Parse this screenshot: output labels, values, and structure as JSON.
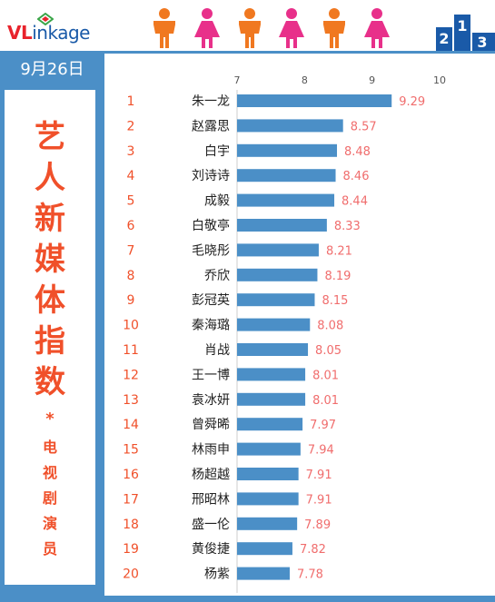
{
  "header": {
    "logo_prefix": "VL",
    "logo_rest": "inkage",
    "people_icons": [
      "male-icon",
      "female-icon",
      "male-icon",
      "female-icon",
      "male-icon",
      "female-icon"
    ],
    "people_colors": {
      "male": "#f07820",
      "female": "#e8308a"
    },
    "podium_icon": "podium-icon"
  },
  "date": "9月26日",
  "title": {
    "main": [
      "艺",
      "人",
      "新",
      "媒",
      "体",
      "指",
      "数"
    ],
    "star": "*",
    "sub": [
      "电",
      "视",
      "剧",
      "演",
      "员"
    ]
  },
  "colors": {
    "panel": "#4b8fc7",
    "accent": "#f0502a",
    "bar": "#4b8fc7",
    "value": "#f06d6d"
  },
  "chart_data": {
    "type": "bar",
    "orientation": "horizontal",
    "categories": [
      "朱一龙",
      "赵露思",
      "白宇",
      "刘诗诗",
      "成毅",
      "白敬亭",
      "毛晓彤",
      "乔欣",
      "彭冠英",
      "秦海璐",
      "肖战",
      "王一博",
      "袁冰妍",
      "曾舜晞",
      "林雨申",
      "杨超越",
      "邢昭林",
      "盛一伦",
      "黄俊捷",
      "杨紫"
    ],
    "ranks": [
      "1",
      "2",
      "3",
      "4",
      "5",
      "6",
      "7",
      "8",
      "9",
      "10",
      "11",
      "12",
      "13",
      "14",
      "15",
      "16",
      "17",
      "18",
      "19",
      "20"
    ],
    "values": [
      9.29,
      8.57,
      8.48,
      8.46,
      8.44,
      8.33,
      8.21,
      8.19,
      8.15,
      8.08,
      8.05,
      8.01,
      8.01,
      7.97,
      7.94,
      7.91,
      7.91,
      7.89,
      7.82,
      7.78
    ],
    "value_labels": [
      "9.29",
      "8.57",
      "8.48",
      "8.46",
      "8.44",
      "8.33",
      "8.21",
      "8.19",
      "8.15",
      "8.08",
      "8.05",
      "8.01",
      "8.01",
      "7.97",
      "7.94",
      "7.91",
      "7.91",
      "7.89",
      "7.82",
      "7.78"
    ],
    "xlim": [
      7,
      10
    ],
    "xticks": [
      "7",
      "8",
      "9",
      "10"
    ],
    "grid": false,
    "title": "",
    "xlabel": "",
    "ylabel": ""
  }
}
